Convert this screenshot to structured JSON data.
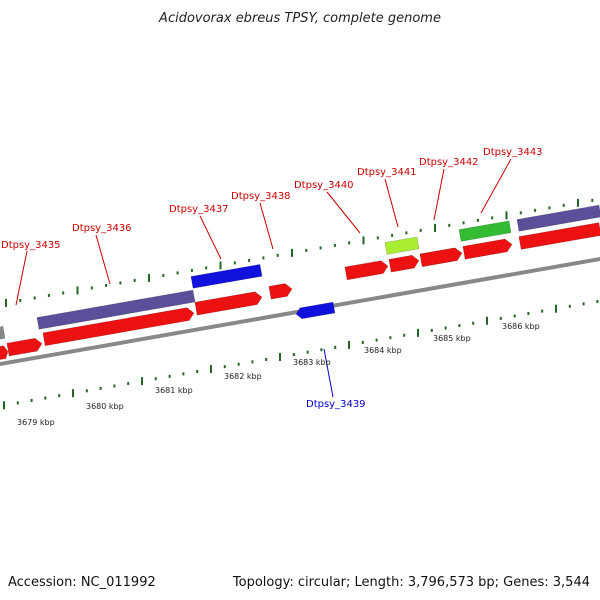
{
  "title": "Acidovorax ebreus TPSY, complete genome",
  "footer": {
    "accession": "Accession: NC_011992",
    "summary": "Topology: circular; Length: 3,796,573 bp; Genes: 3,544"
  },
  "colors": {
    "forward_cds": "#ee1111",
    "reverse_cds": "#1111dd",
    "track_purple": "#5b4f9a",
    "track_green": "#33bb33",
    "track_lime": "#aaee33",
    "track_grey": "#888888",
    "backbone": "#888888",
    "tick": "#226622",
    "forward_label": "#cc0000",
    "reverse_label": "#0000cc"
  },
  "gene_labels": [
    {
      "text": "Dtpsy_3435",
      "strand": "forward"
    },
    {
      "text": "Dtpsy_3436",
      "strand": "forward"
    },
    {
      "text": "Dtpsy_3437",
      "strand": "forward"
    },
    {
      "text": "Dtpsy_3438",
      "strand": "forward"
    },
    {
      "text": "Dtpsy_3440",
      "strand": "forward"
    },
    {
      "text": "Dtpsy_3441",
      "strand": "forward"
    },
    {
      "text": "Dtpsy_3442",
      "strand": "forward"
    },
    {
      "text": "Dtpsy_3443",
      "strand": "forward"
    },
    {
      "text": "Dtpsy_3439",
      "strand": "reverse"
    }
  ],
  "scale_labels": [
    "3679 kbp",
    "3680 kbp",
    "3681 kbp",
    "3682 kbp",
    "3683 kbp",
    "3684 kbp",
    "3685 kbp",
    "3686 kbp"
  ]
}
